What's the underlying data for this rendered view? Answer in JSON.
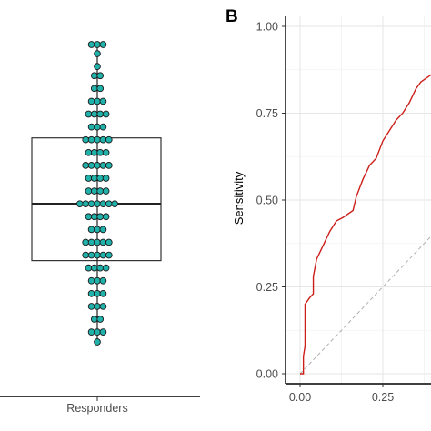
{
  "chart_data": [
    {
      "type": "box",
      "categories": [
        "Responders"
      ],
      "box": {
        "q1": 0.35,
        "median": 0.505,
        "q3": 0.685
      },
      "whisker": {
        "low": 0.128,
        "high": 0.94
      },
      "points": [
        0.94,
        0.94,
        0.94,
        0.915,
        0.88,
        0.855,
        0.855,
        0.82,
        0.82,
        0.785,
        0.785,
        0.785,
        0.75,
        0.75,
        0.75,
        0.75,
        0.715,
        0.715,
        0.715,
        0.68,
        0.68,
        0.68,
        0.68,
        0.68,
        0.645,
        0.645,
        0.645,
        0.645,
        0.61,
        0.61,
        0.61,
        0.61,
        0.61,
        0.575,
        0.575,
        0.575,
        0.575,
        0.54,
        0.54,
        0.54,
        0.54,
        0.505,
        0.505,
        0.505,
        0.505,
        0.505,
        0.505,
        0.505,
        0.47,
        0.47,
        0.47,
        0.47,
        0.435,
        0.435,
        0.435,
        0.4,
        0.4,
        0.4,
        0.4,
        0.4,
        0.365,
        0.365,
        0.365,
        0.365,
        0.365,
        0.33,
        0.33,
        0.33,
        0.33,
        0.295,
        0.295,
        0.295,
        0.26,
        0.26,
        0.26,
        0.225,
        0.225,
        0.225,
        0.19,
        0.19,
        0.155,
        0.155,
        0.155,
        0.128
      ],
      "point_color": "#20b2aa"
    },
    {
      "type": "line",
      "panel_label": "B",
      "ylabel": "Sensitivity",
      "xlim": [
        0,
        0.5
      ],
      "ylim": [
        0,
        1
      ],
      "x_ticks": [
        "0.00",
        "0.25"
      ],
      "y_ticks": [
        "0.00",
        "0.25",
        "0.50",
        "0.75",
        "1.00"
      ],
      "grid": true,
      "series": [
        {
          "color": "#cc1f1a",
          "points": [
            [
              0.0,
              0.0
            ],
            [
              0.01,
              0.0
            ],
            [
              0.01,
              0.05
            ],
            [
              0.015,
              0.08
            ],
            [
              0.015,
              0.2
            ],
            [
              0.03,
              0.22
            ],
            [
              0.04,
              0.23
            ],
            [
              0.04,
              0.28
            ],
            [
              0.05,
              0.33
            ],
            [
              0.07,
              0.37
            ],
            [
              0.09,
              0.41
            ],
            [
              0.11,
              0.44
            ],
            [
              0.13,
              0.45
            ],
            [
              0.16,
              0.47
            ],
            [
              0.17,
              0.51
            ],
            [
              0.19,
              0.56
            ],
            [
              0.21,
              0.6
            ],
            [
              0.23,
              0.62
            ],
            [
              0.25,
              0.67
            ],
            [
              0.27,
              0.7
            ],
            [
              0.29,
              0.73
            ],
            [
              0.31,
              0.75
            ],
            [
              0.33,
              0.78
            ],
            [
              0.34,
              0.8
            ],
            [
              0.35,
              0.82
            ],
            [
              0.365,
              0.84
            ],
            [
              0.38,
              0.85
            ],
            [
              0.395,
              0.86
            ],
            [
              0.41,
              0.865
            ]
          ]
        },
        {
          "color": "#b0b0b0",
          "dash": true,
          "points": [
            [
              0,
              0
            ],
            [
              0.5,
              0.5
            ]
          ]
        }
      ]
    }
  ]
}
